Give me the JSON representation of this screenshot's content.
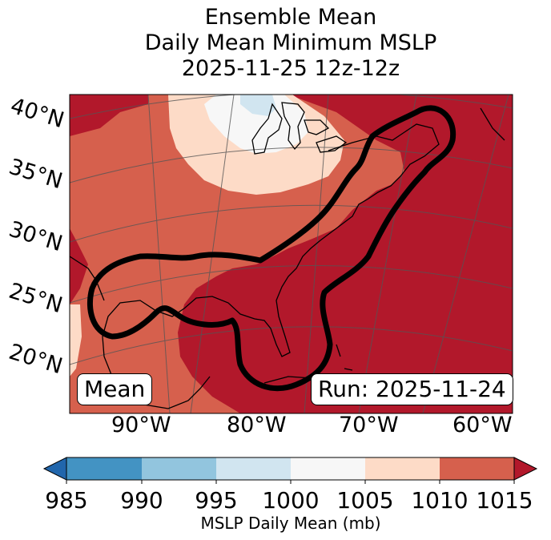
{
  "title": {
    "line1": "Ensemble Mean",
    "line2": "Daily Mean Minimum MSLP",
    "line3": "2025-11-25 12z-12z"
  },
  "lat_labels": [
    "40°N",
    "35°N",
    "30°N",
    "25°N",
    "20°N"
  ],
  "lon_labels": [
    "90°W",
    "80°W",
    "70°W",
    "60°W"
  ],
  "mean_label": "Mean",
  "run_label": "Run: 2025-11-24",
  "colorbar": {
    "ticks": [
      "985",
      "990",
      "995",
      "1000",
      "1005",
      "1010",
      "1015"
    ],
    "label": "MSLP Daily Mean (mb)",
    "colors": [
      "#2166ac",
      "#4393c3",
      "#92c5de",
      "#d1e5f0",
      "#f7f7f7",
      "#fddbc7",
      "#d6604d",
      "#b2182b"
    ]
  },
  "map_fill_colors": {
    "deep_red": "#b2182b",
    "red": "#d6604d",
    "peach": "#fddbc7",
    "white": "#f7f7f7",
    "light_blue": "#d1e5f0"
  }
}
